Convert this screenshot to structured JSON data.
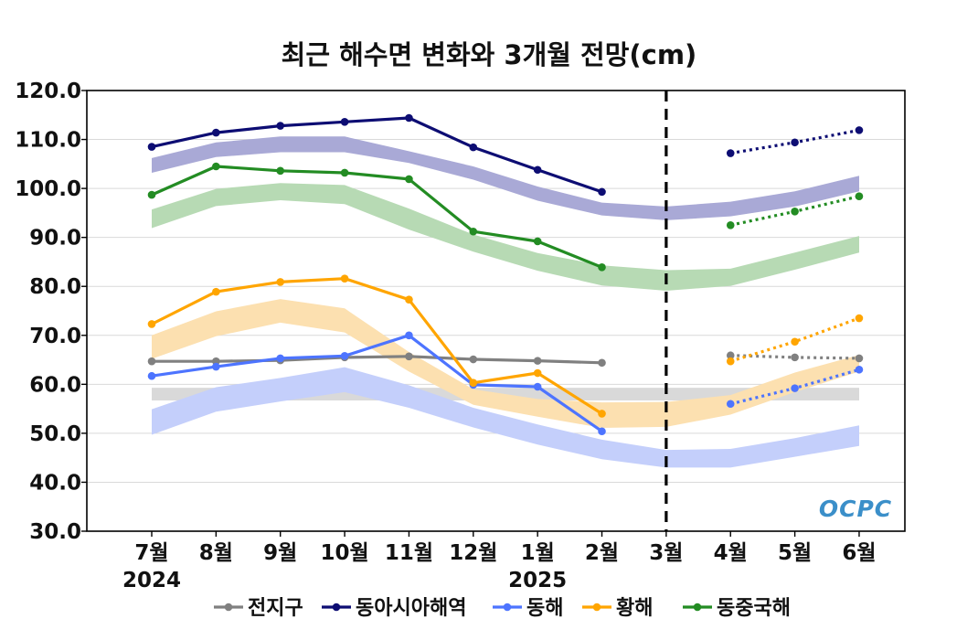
{
  "chart_data": {
    "type": "line",
    "title": "최근 해수면 변화와 3개월 전망(cm)",
    "categories": [
      "7월",
      "8월",
      "9월",
      "10월",
      "11월",
      "12월",
      "1월",
      "2월",
      "3월",
      "4월",
      "5월",
      "6월"
    ],
    "year_labels": [
      {
        "label": "2024",
        "category_index": 0
      },
      {
        "label": "2025",
        "category_index": 6
      }
    ],
    "ylim": [
      30,
      120
    ],
    "yticks": [
      "30.0",
      "40.0",
      "50.0",
      "60.0",
      "70.0",
      "80.0",
      "90.0",
      "100.0",
      "110.0",
      "120.0"
    ],
    "ytick_values": [
      30,
      40,
      50,
      60,
      70,
      80,
      90,
      100,
      110,
      120
    ],
    "grid": true,
    "divider_category": "3월",
    "logo": "OCPC",
    "legend_position": "bottom",
    "series": [
      {
        "name": "전지구",
        "color": "#808080",
        "band_color": "#d9d9d9",
        "observed": [
          64.7,
          64.7,
          64.9,
          65.5,
          65.7,
          65.1,
          64.8,
          64.4,
          null,
          null,
          null,
          null
        ],
        "forecast": [
          null,
          null,
          null,
          null,
          null,
          null,
          null,
          null,
          null,
          65.9,
          65.5,
          65.3
        ],
        "band_low": [
          56.7,
          56.7,
          56.7,
          56.7,
          56.7,
          56.7,
          56.7,
          56.7,
          56.7,
          56.7,
          56.7,
          56.7
        ],
        "band_high": [
          59.3,
          59.3,
          59.3,
          59.3,
          59.3,
          59.3,
          59.3,
          59.3,
          59.3,
          59.3,
          59.3,
          59.3
        ]
      },
      {
        "name": "동아시아해역",
        "color": "#0d0d73",
        "band_color": "#a9a9d6",
        "observed": [
          108.5,
          111.4,
          112.8,
          113.6,
          114.4,
          108.4,
          103.8,
          99.3,
          null,
          null,
          null,
          null
        ],
        "forecast": [
          null,
          null,
          null,
          null,
          null,
          null,
          null,
          null,
          null,
          107.2,
          109.4,
          111.9
        ],
        "band_low": [
          103.2,
          106.4,
          107.4,
          107.4,
          105.2,
          101.8,
          97.5,
          94.5,
          93.5,
          94.3,
          96.3,
          99.4
        ],
        "band_high": [
          106.2,
          109.4,
          110.6,
          110.6,
          107.6,
          104.5,
          100.4,
          97.1,
          96.3,
          97.3,
          99.4,
          102.6
        ]
      },
      {
        "name": "동해",
        "color": "#4d74ff",
        "band_color": "#c4cffb",
        "observed": [
          61.7,
          63.6,
          65.3,
          65.8,
          70.0,
          59.9,
          59.5,
          50.4,
          null,
          null,
          null,
          null
        ],
        "forecast": [
          null,
          null,
          null,
          null,
          null,
          null,
          null,
          null,
          null,
          56.0,
          59.2,
          63.0
        ],
        "band_low": [
          49.7,
          54.4,
          56.5,
          58.4,
          55.2,
          51.2,
          47.7,
          44.7,
          43.0,
          43.0,
          45.2,
          47.4
        ],
        "band_high": [
          54.9,
          59.4,
          61.3,
          63.5,
          59.8,
          55.2,
          51.8,
          48.7,
          46.6,
          46.8,
          49.0,
          51.6
        ]
      },
      {
        "name": "황해",
        "color": "#ffa500",
        "band_color": "#fce0b0",
        "observed": [
          72.3,
          78.9,
          80.9,
          81.6,
          77.3,
          60.3,
          62.3,
          54.0,
          null,
          null,
          null,
          null
        ],
        "forecast": [
          null,
          null,
          null,
          null,
          null,
          null,
          null,
          null,
          null,
          64.7,
          68.7,
          73.5
        ],
        "band_low": [
          65.2,
          69.8,
          72.6,
          70.6,
          62.6,
          55.8,
          53.4,
          51.1,
          51.3,
          53.8,
          58.4,
          62.6
        ],
        "band_high": [
          70.0,
          74.9,
          77.4,
          75.5,
          66.6,
          59.0,
          57.0,
          56.3,
          56.4,
          57.8,
          62.4,
          66.0
        ]
      },
      {
        "name": "동중국해",
        "color": "#238c23",
        "band_color": "#b7dab4",
        "observed": [
          98.7,
          104.5,
          103.6,
          103.2,
          101.9,
          91.2,
          89.2,
          83.9,
          null,
          null,
          null,
          null
        ],
        "forecast": [
          null,
          null,
          null,
          null,
          null,
          null,
          null,
          null,
          null,
          92.5,
          95.3,
          98.4
        ],
        "band_low": [
          91.9,
          96.4,
          97.6,
          96.8,
          91.6,
          87.1,
          83.2,
          80.2,
          79.1,
          80.1,
          83.4,
          86.9
        ],
        "band_high": [
          95.7,
          99.9,
          101.1,
          100.7,
          95.9,
          90.6,
          86.8,
          84.3,
          83.3,
          83.6,
          86.9,
          90.3
        ]
      }
    ]
  }
}
